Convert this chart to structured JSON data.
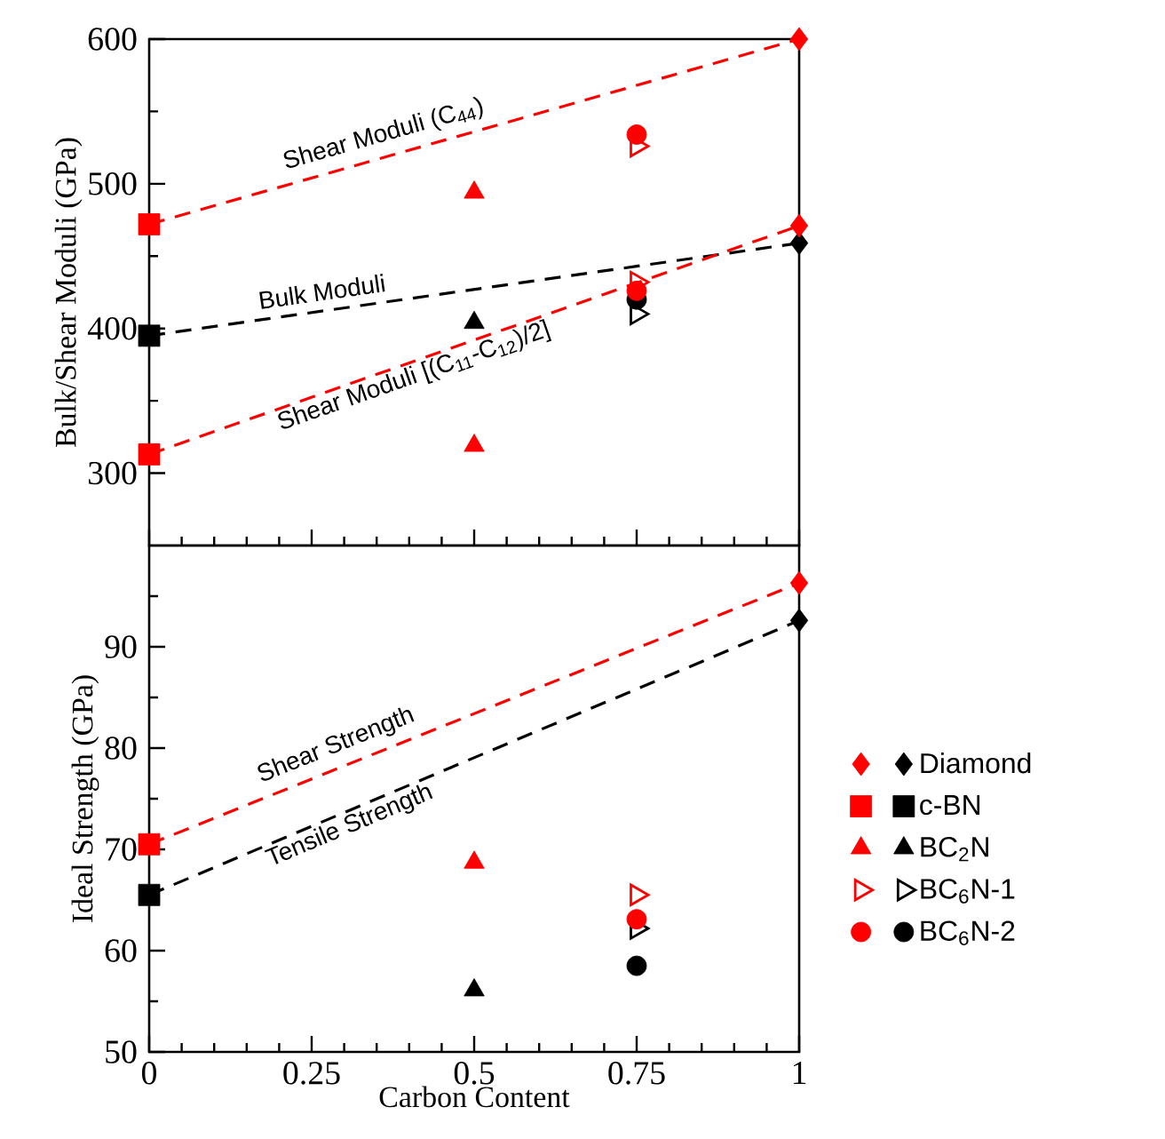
{
  "chart_data": [
    {
      "type": "scatter",
      "ylabel": "Bulk/Shear Moduli (GPa)",
      "xlim": [
        0,
        1
      ],
      "ylim": [
        250,
        600
      ],
      "xticks": [
        0,
        {
          "value": 0.05,
          "label": null
        },
        {
          "value": 0.1,
          "label": null
        },
        {
          "value": 0.15,
          "label": null
        },
        {
          "value": 0.2,
          "label": null
        },
        0.25,
        {
          "value": 0.3,
          "label": null
        },
        {
          "value": 0.35,
          "label": null
        },
        {
          "value": 0.4,
          "label": null
        },
        {
          "value": 0.45,
          "label": null
        },
        0.5,
        {
          "value": 0.55,
          "label": null
        },
        {
          "value": 0.6,
          "label": null
        },
        {
          "value": 0.65,
          "label": null
        },
        {
          "value": 0.7,
          "label": null
        },
        0.75,
        {
          "value": 0.8,
          "label": null
        },
        {
          "value": 0.85,
          "label": null
        },
        {
          "value": 0.9,
          "label": null
        },
        {
          "value": 0.95,
          "label": null
        },
        1
      ],
      "yticks": [
        300,
        {
          "value": 350,
          "label": null
        },
        400,
        {
          "value": 450,
          "label": null
        },
        500,
        {
          "value": 550,
          "label": null
        },
        600
      ],
      "tick_labels": "y",
      "grid": false,
      "series": [
        {
          "type": "line",
          "name": "Shear Moduli (C$_{44}$)",
          "color": "#ff0000",
          "line_style": "dashed",
          "marker": "none",
          "x": [
            0,
            1
          ],
          "values": [
            472,
            600
          ]
        },
        {
          "type": "line",
          "name": "Bulk Moduli",
          "color": "#000000",
          "line_style": "dashed",
          "marker": "none",
          "x": [
            0,
            1
          ],
          "values": [
            395,
            459
          ]
        },
        {
          "type": "line",
          "name": "Shear Moduli [(C$_{11}$-C$_{12}$)/2]",
          "color": "#ff0000",
          "line_style": "dashed",
          "marker": "none",
          "x": [
            0,
            1
          ],
          "values": [
            313,
            471
          ]
        },
        {
          "marker": "diamond",
          "x": [
            1,
            1,
            1
          ],
          "values": [
            459,
            600,
            471
          ],
          "colors": [
            "#000000",
            "#ff0000",
            "#ff0000"
          ]
        },
        {
          "marker": "square",
          "x": [
            0,
            0,
            0
          ],
          "values": [
            395,
            472,
            313
          ],
          "colors": [
            "#000000",
            "#ff0000",
            "#ff0000"
          ]
        },
        {
          "marker": "triangle",
          "x": [
            0.5,
            0.5,
            0.5
          ],
          "values": [
            404,
            494,
            319
          ],
          "colors": [
            "#000000",
            "#ff0000",
            "#ff0000"
          ]
        },
        {
          "marker": "triangle-right-open",
          "x": [
            0.75,
            0.75,
            0.75
          ],
          "values": [
            410,
            526,
            432
          ],
          "colors": [
            "#000000",
            "#ff0000",
            "#ff0000"
          ]
        },
        {
          "marker": "circle",
          "x": [
            0.75,
            0.75,
            0.75
          ],
          "values": [
            420,
            534,
            426
          ],
          "colors": [
            "#000000",
            "#ff0000",
            "#ff0000"
          ]
        }
      ]
    },
    {
      "type": "scatter",
      "xlabel": "Carbon Content",
      "ylabel": "Ideal Strength (GPa)",
      "xlim": [
        0,
        1
      ],
      "ylim": [
        50,
        100
      ],
      "xticks": [
        0,
        {
          "value": 0.05,
          "label": null
        },
        {
          "value": 0.1,
          "label": null
        },
        {
          "value": 0.15,
          "label": null
        },
        {
          "value": 0.2,
          "label": null
        },
        0.25,
        {
          "value": 0.3,
          "label": null
        },
        {
          "value": 0.35,
          "label": null
        },
        {
          "value": 0.4,
          "label": null
        },
        {
          "value": 0.45,
          "label": null
        },
        0.5,
        {
          "value": 0.55,
          "label": null
        },
        {
          "value": 0.6,
          "label": null
        },
        {
          "value": 0.65,
          "label": null
        },
        {
          "value": 0.7,
          "label": null
        },
        0.75,
        {
          "value": 0.8,
          "label": null
        },
        {
          "value": 0.85,
          "label": null
        },
        {
          "value": 0.9,
          "label": null
        },
        {
          "value": 0.95,
          "label": null
        },
        1
      ],
      "yticks": [
        50,
        {
          "value": 55,
          "label": null
        },
        60,
        {
          "value": 65,
          "label": null
        },
        70,
        {
          "value": 75,
          "label": null
        },
        80,
        {
          "value": 85,
          "label": null
        },
        90,
        {
          "value": 95,
          "label": null
        }
      ],
      "grid": false,
      "legend": "right",
      "series": [
        {
          "type": "line",
          "name": "Shear Strength",
          "color": "#ff0000",
          "line_style": "dashed",
          "marker": "none",
          "x": [
            0,
            1
          ],
          "values": [
            70.5,
            96.3
          ]
        },
        {
          "type": "line",
          "name": "Tensile Strength",
          "color": "#000000",
          "line_style": "dashed",
          "marker": "none",
          "x": [
            0,
            1
          ],
          "values": [
            65.5,
            92.6
          ]
        },
        {
          "name": "Diamond",
          "marker": "diamond",
          "x": [
            1,
            1
          ],
          "values": [
            92.6,
            96.3
          ],
          "colors": [
            "#000000",
            "#ff0000"
          ]
        },
        {
          "name": "c-BN",
          "marker": "square",
          "x": [
            0,
            0
          ],
          "values": [
            65.5,
            70.5
          ],
          "colors": [
            "#000000",
            "#ff0000"
          ]
        },
        {
          "name": "BC$_{2}$N",
          "marker": "triangle",
          "x": [
            0.5,
            0.5
          ],
          "values": [
            56.1,
            68.7
          ],
          "colors": [
            "#000000",
            "#ff0000"
          ]
        },
        {
          "name": "BC$_{6}$N-1",
          "marker": "triangle-right-open",
          "x": [
            0.75,
            0.75
          ],
          "values": [
            62.2,
            65.5
          ],
          "colors": [
            "#000000",
            "#ff0000"
          ]
        },
        {
          "name": "BC$_{6}$N-2",
          "marker": "circle",
          "x": [
            0.75,
            0.75
          ],
          "values": [
            58.5,
            63.1
          ],
          "colors": [
            "#000000",
            "#ff0000"
          ]
        }
      ]
    }
  ]
}
